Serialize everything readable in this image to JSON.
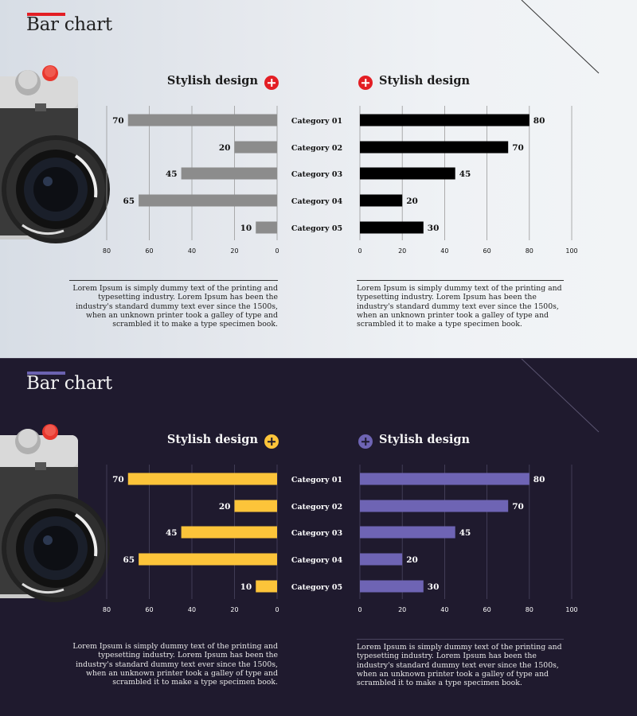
{
  "slides": [
    {
      "id": "light",
      "title": "Bar chart",
      "colors": {
        "accent": "#e31e24",
        "left_bar": "#8c8c8c",
        "right_bar": "#000000",
        "grid": "#9a9a9a",
        "label": "#111111",
        "left_icon": "#e31e24",
        "right_icon": "#e31e24",
        "icon_glyph": "#ffffff"
      },
      "left_chart_title": "Stylish design",
      "right_chart_title": "Stylish design",
      "left_description": "Lorem Ipsum is simply dummy text of the printing and typesetting industry. Lorem Ipsum has been the industry's standard dummy text ever since the 1500s, when an unknown printer took a galley of type and scrambled it to make a type specimen book.",
      "right_description": "Lorem Ipsum is simply dummy text of the printing and typesetting industry. Lorem Ipsum has been the industry's standard dummy text ever since the 1500s, when an unknown printer took a galley of type and scrambled it to make a type specimen book."
    },
    {
      "id": "dark",
      "title": "Bar chart",
      "colors": {
        "accent": "#6b62b0",
        "left_bar": "#fcc43a",
        "right_bar": "#6e64b4",
        "grid": "#4a4560",
        "label": "#ffffff",
        "left_icon": "#fcc43a",
        "right_icon": "#6e64b4",
        "icon_glyph": "#1f1a2e"
      },
      "left_chart_title": "Stylish design",
      "right_chart_title": "Stylish design",
      "left_description": "Lorem Ipsum is simply dummy text of the printing and typesetting industry. Lorem Ipsum has been the industry's standard dummy text ever since the 1500s, when an unknown printer took a galley of type and scrambled it to make a type specimen book.",
      "right_description": "Lorem Ipsum is simply dummy text of the printing and typesetting industry. Lorem Ipsum has been the industry's standard dummy text ever since the 1500s, when an unknown printer took a galley of type and scrambled it to make a type specimen book."
    }
  ],
  "chart_data": [
    {
      "type": "bar",
      "orientation": "horizontal",
      "direction": "right-to-left",
      "title": "Stylish design",
      "categories": [
        "Category 01",
        "Category 02",
        "Category 03",
        "Category 04",
        "Category 05"
      ],
      "values": [
        70,
        20,
        45,
        65,
        10
      ],
      "xlim": [
        0,
        80
      ],
      "xticks": [
        80,
        60,
        40,
        20,
        0
      ],
      "grid": true
    },
    {
      "type": "bar",
      "orientation": "horizontal",
      "direction": "left-to-right",
      "title": "Stylish design",
      "categories": [
        "Category 01",
        "Category 02",
        "Category 03",
        "Category 04",
        "Category 05"
      ],
      "values": [
        80,
        70,
        45,
        20,
        30
      ],
      "xlim": [
        0,
        100
      ],
      "xticks": [
        0,
        20,
        40,
        60,
        80,
        100
      ],
      "grid": true
    }
  ]
}
